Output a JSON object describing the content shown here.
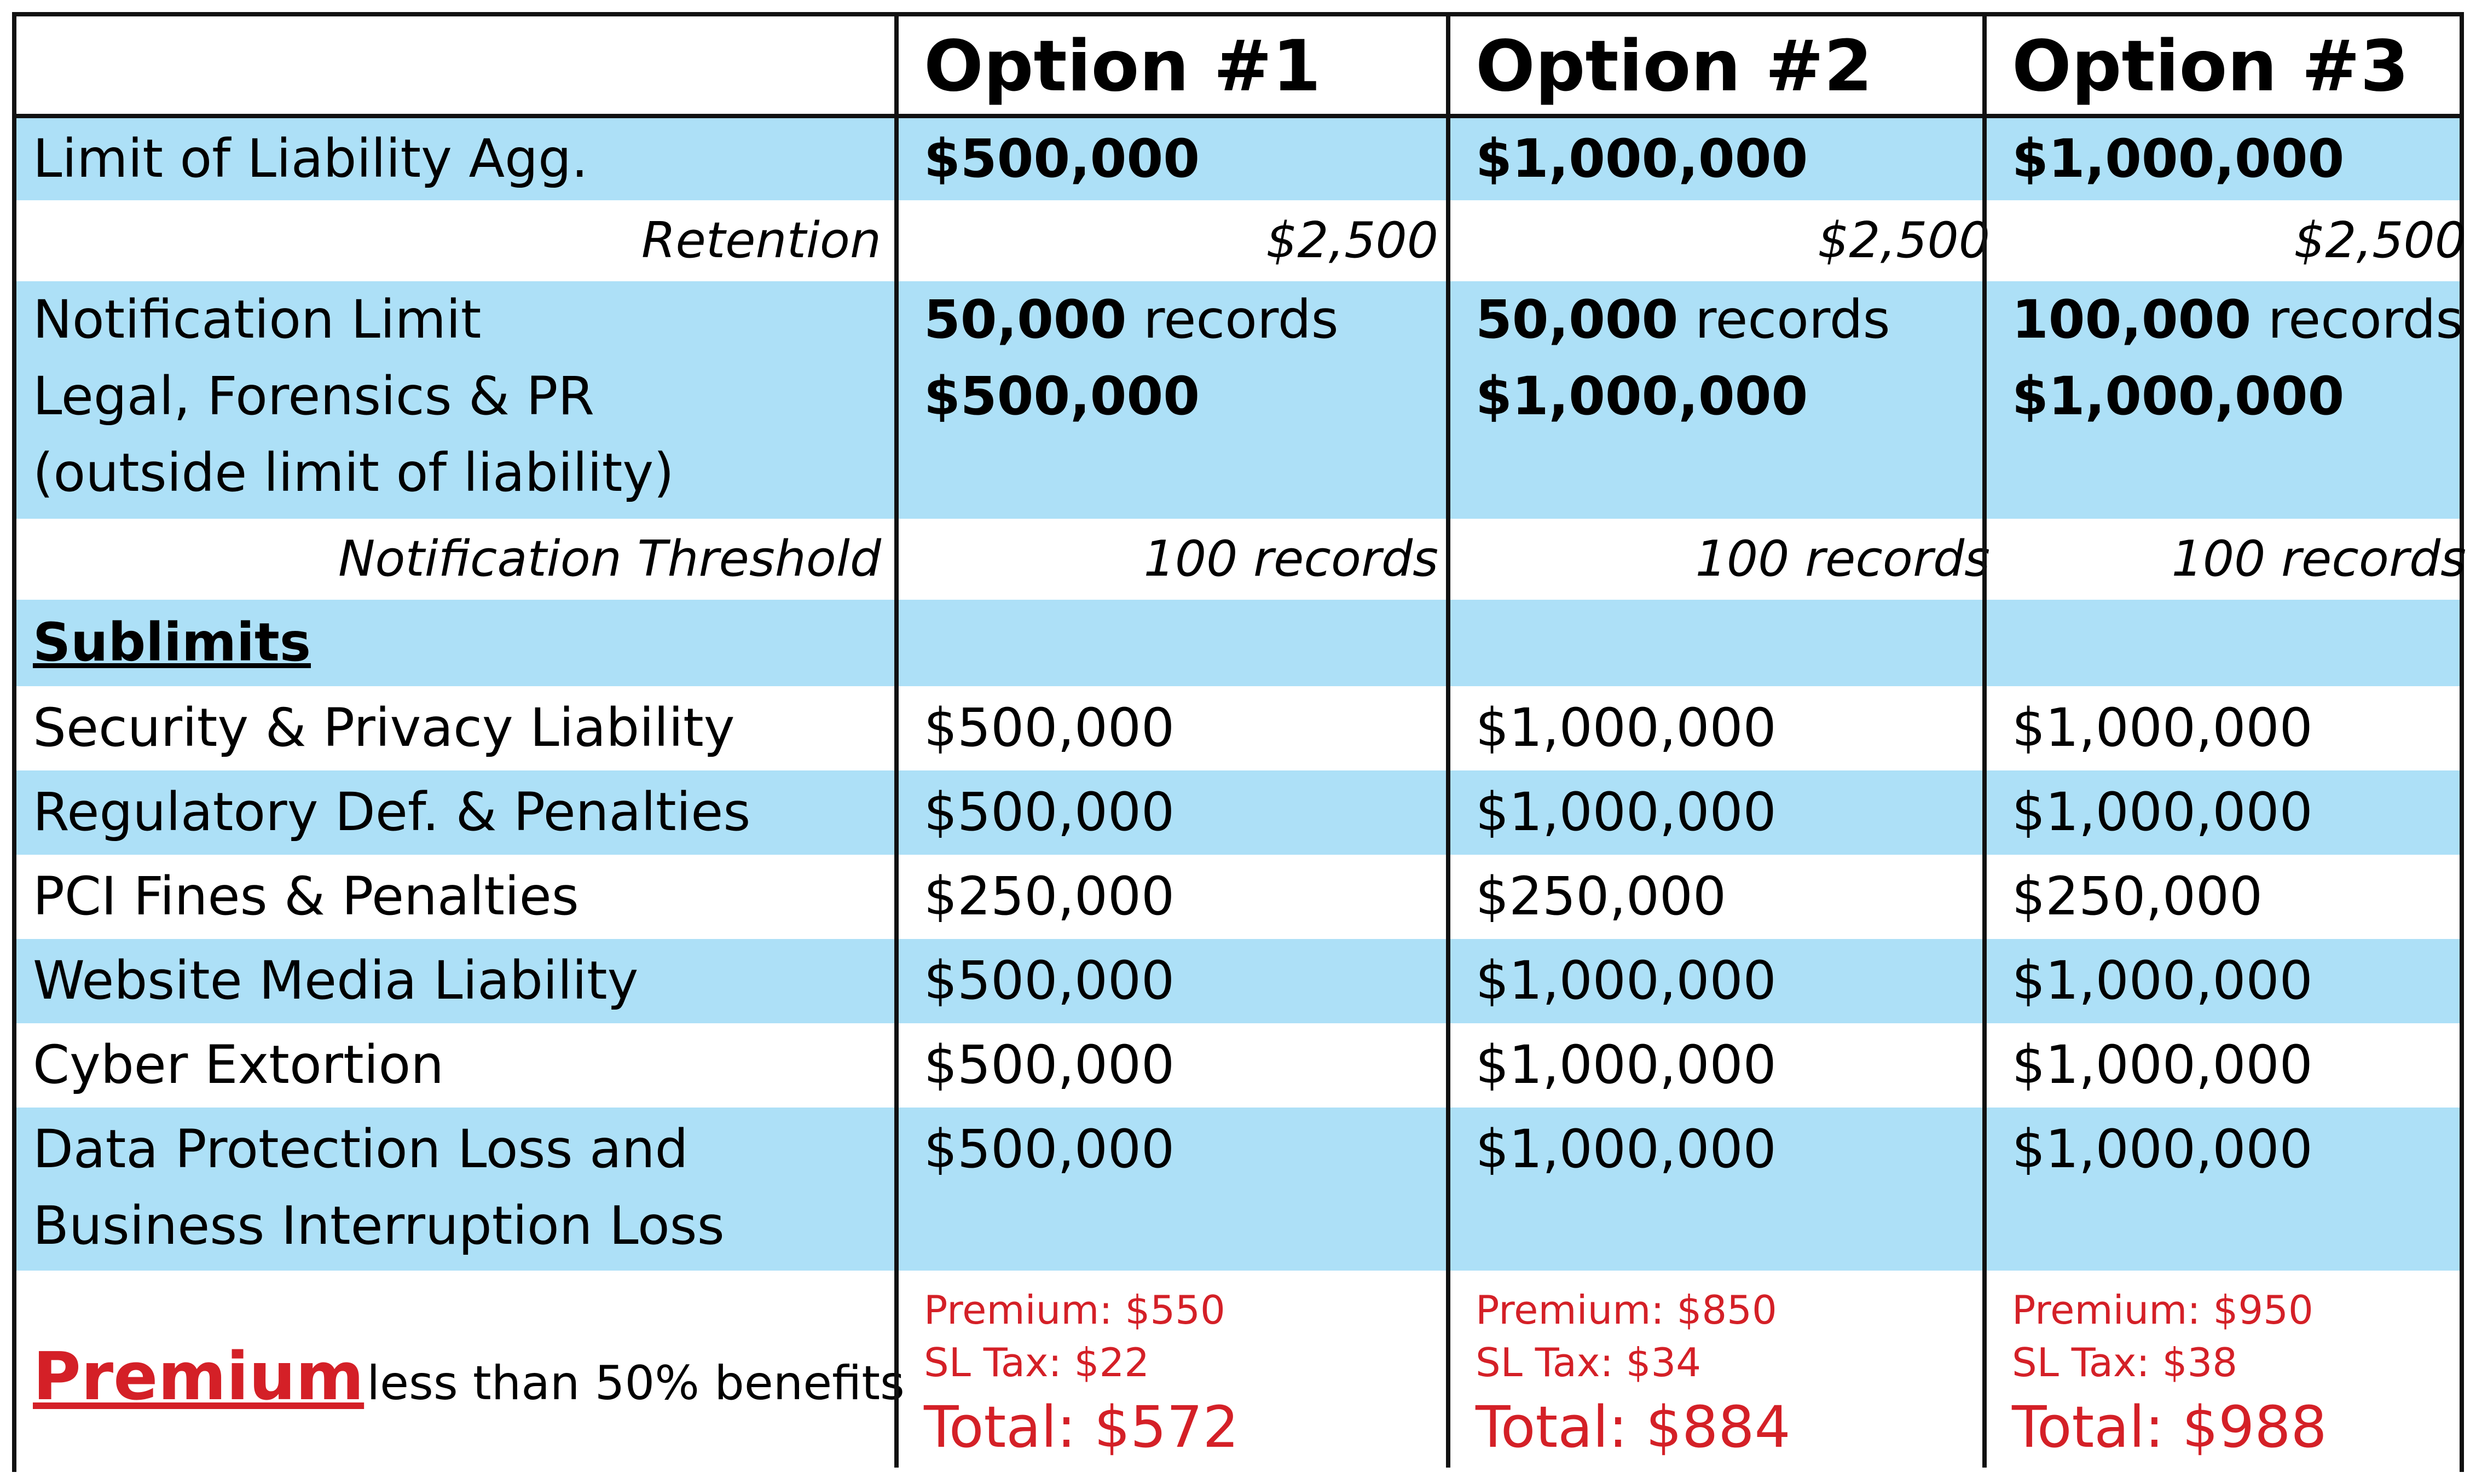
{
  "header": {
    "option1": "Option #1",
    "option2": "Option #2",
    "option3": "Option #3"
  },
  "limit_of_liability": {
    "label": "Limit of Liability Agg.",
    "values": [
      "$500,000",
      "$1,000,000",
      "$1,000,000"
    ]
  },
  "retention": {
    "label": "Retention",
    "values": [
      "$2,500",
      "$2,500",
      "$2,500"
    ]
  },
  "notification_limit": {
    "label_line1": "Notification Limit",
    "label_line2": "Legal, Forensics & PR",
    "label_line3": "(outside limit of liability)",
    "records_numbers": [
      "50,000",
      "50,000",
      "100,000"
    ],
    "records_word": "records",
    "amounts": [
      "$500,000",
      "$1,000,000",
      "$1,000,000"
    ]
  },
  "notification_threshold": {
    "label": "Notification Threshold",
    "values": [
      "100 records",
      "100 records",
      "100 records"
    ]
  },
  "sublimits": {
    "heading": "Sublimits",
    "rows": [
      {
        "label": "Security & Privacy Liability",
        "values": [
          "$500,000",
          "$1,000,000",
          "$1,000,000"
        ]
      },
      {
        "label": "Regulatory Def. & Penalties",
        "values": [
          "$500,000",
          "$1,000,000",
          "$1,000,000"
        ]
      },
      {
        "label": "PCI Fines & Penalties",
        "values": [
          "$250,000",
          "$250,000",
          "$250,000"
        ]
      },
      {
        "label": "Website Media Liability",
        "values": [
          "$500,000",
          "$1,000,000",
          "$1,000,000"
        ]
      },
      {
        "label": "Cyber Extortion",
        "values": [
          "$500,000",
          "$1,000,000",
          "$1,000,000"
        ]
      },
      {
        "label_line1": "Data Protection Loss and",
        "label_line2": "Business Interruption Loss",
        "values": [
          "$500,000",
          "$1,000,000",
          "$1,000,000"
        ]
      }
    ]
  },
  "premium": {
    "label": "Premium",
    "note": "less than 50% benefits",
    "options": [
      {
        "premium": "Premium: $550",
        "tax": "SL Tax: $22",
        "total": "Total: $572"
      },
      {
        "premium": "Premium: $850",
        "tax": "SL Tax: $34",
        "total": "Total: $884"
      },
      {
        "premium": "Premium: $950",
        "tax": "SL Tax: $38",
        "total": "Total: $988"
      }
    ]
  },
  "colors": {
    "row_blue": "#ade0f7",
    "premium_red": "#d42027",
    "border": "#111111"
  }
}
